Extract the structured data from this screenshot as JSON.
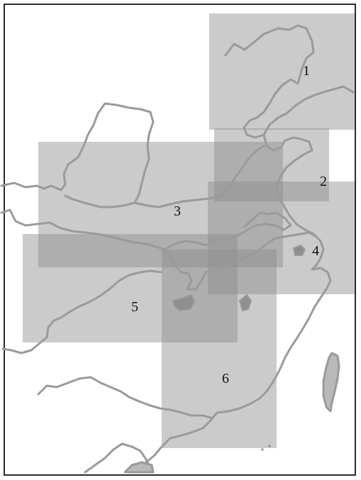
{
  "map": {
    "region_fill": "#8c8c8c",
    "line_color": "#9a9a9a",
    "regions": [
      {
        "id": "1",
        "label": "1"
      },
      {
        "id": "2",
        "label": "2"
      },
      {
        "id": "3",
        "label": "3"
      },
      {
        "id": "4",
        "label": "4"
      },
      {
        "id": "5",
        "label": "5"
      },
      {
        "id": "6",
        "label": "6"
      }
    ]
  }
}
